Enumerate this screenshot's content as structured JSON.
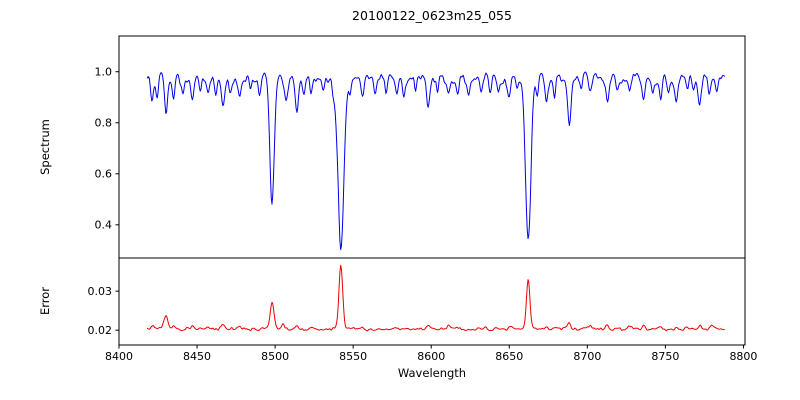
{
  "chart_data": {
    "type": "line",
    "title": "20100122_0623m25_055",
    "xlabel": "Wavelength",
    "xlim": [
      8400,
      8801
    ],
    "x_data_range": [
      8418,
      8788
    ],
    "x_ticks": [
      8400,
      8450,
      8500,
      8550,
      8600,
      8650,
      8700,
      8750,
      8800
    ],
    "x_tick_labels": [
      "8400",
      "8450",
      "8500",
      "8550",
      "8600",
      "8650",
      "8700",
      "8750",
      "8800"
    ],
    "grid": false,
    "legend": "none",
    "subplots": [
      {
        "name": "spectrum",
        "ylabel": "Spectrum",
        "color": "#0000ee",
        "ylim": [
          0.27,
          1.14
        ],
        "yticks": [
          0.4,
          0.6,
          0.8,
          1.0
        ],
        "ytick_labels": [
          "0.4",
          "0.6",
          "0.8",
          "1.0"
        ],
        "baseline": 0.975,
        "noise": [
          0.018,
          0.012
        ],
        "seed": 1,
        "mode": "absorption",
        "clip": [
          0.29,
          1.06
        ],
        "features": [
          [
            8498.0,
            0.495,
            1.4
          ],
          [
            8542.1,
            0.66,
            1.9
          ],
          [
            8662.1,
            0.64,
            1.7
          ],
          [
            8421,
            0.09,
            0.9
          ],
          [
            8424.5,
            0.07,
            0.8
          ],
          [
            8430,
            0.12,
            1.0
          ],
          [
            8435,
            0.09,
            0.9
          ],
          [
            8441,
            0.07,
            0.8
          ],
          [
            8447,
            0.09,
            0.9
          ],
          [
            8452,
            0.05,
            0.8
          ],
          [
            8457,
            0.07,
            0.8
          ],
          [
            8462,
            0.06,
            0.8
          ],
          [
            8466.5,
            0.11,
            1.0
          ],
          [
            8471,
            0.06,
            0.8
          ],
          [
            8477,
            0.08,
            0.9
          ],
          [
            8484,
            0.05,
            0.8
          ],
          [
            8490,
            0.06,
            0.8
          ],
          [
            8507,
            0.07,
            0.9
          ],
          [
            8514,
            0.13,
            1.1
          ],
          [
            8518.5,
            0.07,
            0.9
          ],
          [
            8523,
            0.06,
            0.8
          ],
          [
            8531,
            0.05,
            0.8
          ],
          [
            8537,
            0.05,
            0.8
          ],
          [
            8548,
            0.05,
            0.8
          ],
          [
            8556,
            0.07,
            0.9
          ],
          [
            8564,
            0.06,
            0.8
          ],
          [
            8571,
            0.05,
            0.8
          ],
          [
            8578,
            0.06,
            0.8
          ],
          [
            8582.5,
            0.08,
            0.9
          ],
          [
            8590,
            0.05,
            0.8
          ],
          [
            8598,
            0.11,
            1.0
          ],
          [
            8604,
            0.06,
            0.8
          ],
          [
            8611,
            0.07,
            0.9
          ],
          [
            8617,
            0.05,
            0.8
          ],
          [
            8624,
            0.06,
            0.8
          ],
          [
            8632,
            0.05,
            0.8
          ],
          [
            8638,
            0.06,
            0.8
          ],
          [
            8643,
            0.05,
            0.8
          ],
          [
            8650,
            0.07,
            0.9
          ],
          [
            8655,
            0.05,
            0.8
          ],
          [
            8668,
            0.06,
            0.8
          ],
          [
            8674,
            0.09,
            0.9
          ],
          [
            8679,
            0.06,
            0.8
          ],
          [
            8688.5,
            0.2,
            1.1
          ],
          [
            8696,
            0.06,
            0.8
          ],
          [
            8702,
            0.05,
            0.8
          ],
          [
            8713,
            0.09,
            0.9
          ],
          [
            8719,
            0.05,
            0.8
          ],
          [
            8727,
            0.06,
            0.8
          ],
          [
            8736,
            0.09,
            0.9
          ],
          [
            8742,
            0.05,
            0.8
          ],
          [
            8747,
            0.06,
            0.8
          ],
          [
            8752,
            0.05,
            0.8
          ],
          [
            8757,
            0.08,
            0.9
          ],
          [
            8764,
            0.06,
            0.8
          ],
          [
            8768,
            0.05,
            0.8
          ],
          [
            8772,
            0.1,
            1.0
          ],
          [
            8778,
            0.06,
            0.8
          ],
          [
            8783,
            0.05,
            0.8
          ]
        ]
      },
      {
        "name": "error",
        "ylabel": "Error",
        "color": "#ee0000",
        "ylim": [
          0.0162,
          0.0385
        ],
        "yticks": [
          0.02,
          0.03
        ],
        "ytick_labels": [
          "0.02",
          "0.03"
        ],
        "baseline": 0.0203,
        "noise": [
          0.00035,
          0.00025
        ],
        "seed": 9,
        "mode": "emission",
        "clip": [
          0.017,
          0.0384
        ],
        "features": [
          [
            8422,
            0.0008,
            1.0
          ],
          [
            8430,
            0.003,
            1.3
          ],
          [
            8435,
            0.0009,
            1.0
          ],
          [
            8447,
            0.0007,
            1.0
          ],
          [
            8457,
            0.0005,
            0.9
          ],
          [
            8466.5,
            0.0013,
            1.1
          ],
          [
            8477,
            0.0007,
            1.0
          ],
          [
            8498,
            0.0068,
            1.2
          ],
          [
            8505,
            0.001,
            1.0
          ],
          [
            8514,
            0.0013,
            1.0
          ],
          [
            8523,
            0.0006,
            0.9
          ],
          [
            8542.1,
            0.0165,
            1.2
          ],
          [
            8556,
            0.0005,
            0.9
          ],
          [
            8582,
            0.0005,
            0.9
          ],
          [
            8598,
            0.0006,
            0.9
          ],
          [
            8611,
            0.0005,
            0.9
          ],
          [
            8650,
            0.0005,
            0.9
          ],
          [
            8662.1,
            0.0125,
            1.1
          ],
          [
            8674,
            0.0007,
            0.9
          ],
          [
            8688.5,
            0.0016,
            1.0
          ],
          [
            8702,
            0.0005,
            0.9
          ],
          [
            8713,
            0.0008,
            0.9
          ],
          [
            8727,
            0.0006,
            0.9
          ],
          [
            8736,
            0.0007,
            0.9
          ],
          [
            8747,
            0.0005,
            0.9
          ],
          [
            8757,
            0.0009,
            0.9
          ],
          [
            8764,
            0.0008,
            0.9
          ],
          [
            8772,
            0.0011,
            1.0
          ],
          [
            8780,
            0.0013,
            1.0
          ]
        ]
      }
    ]
  }
}
